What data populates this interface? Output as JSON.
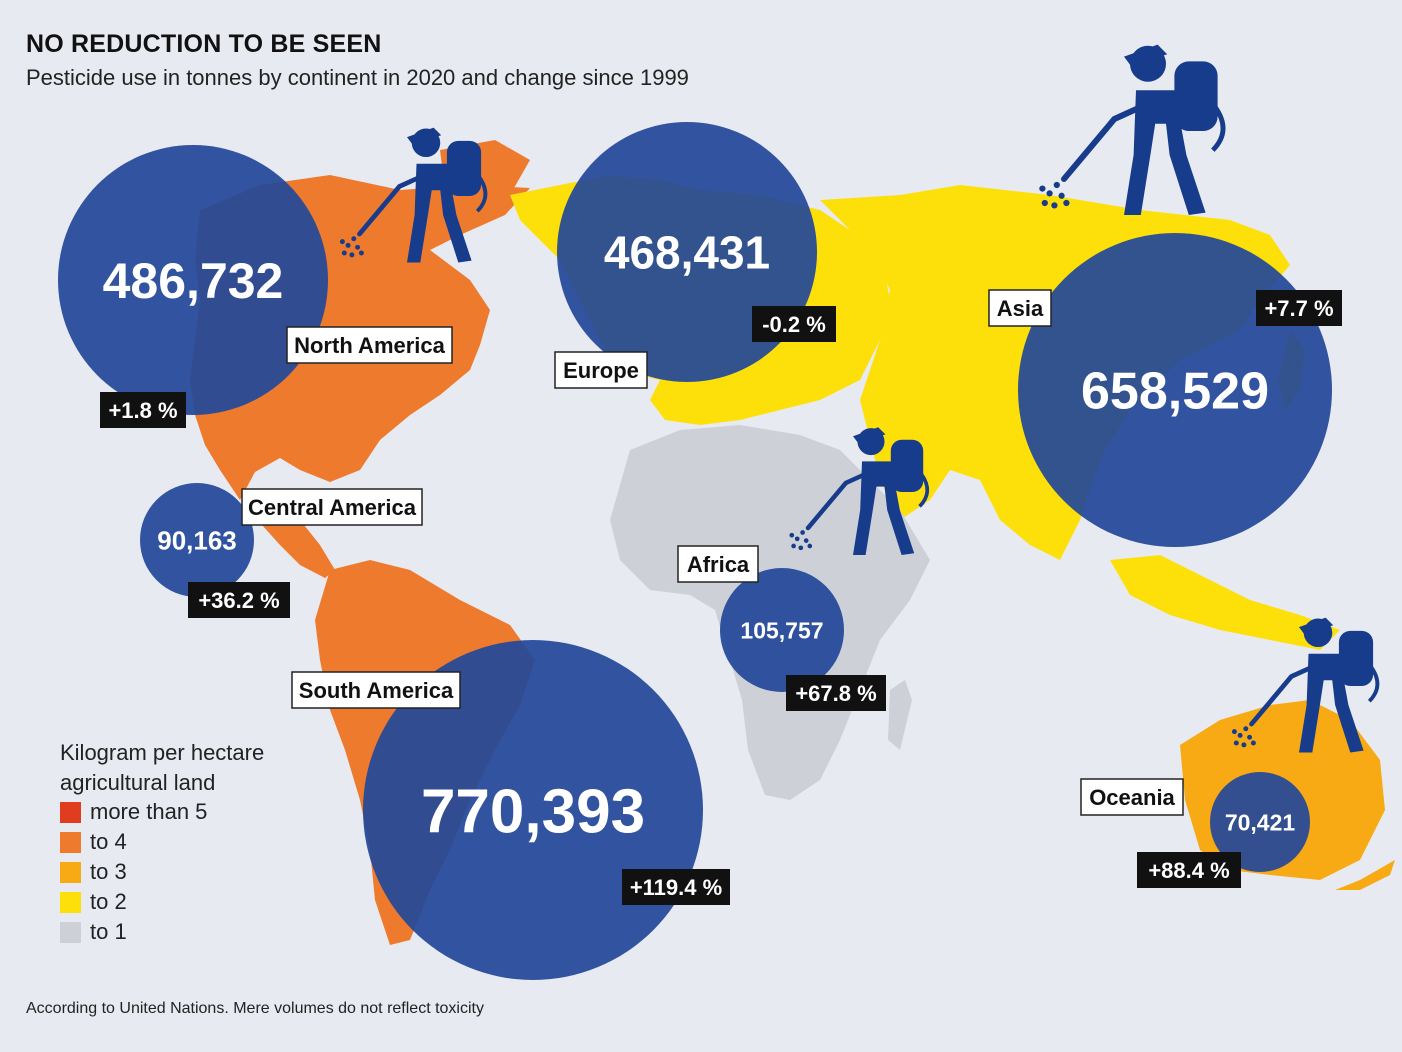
{
  "header": {
    "title": "NO REDUCTION TO BE SEEN",
    "subtitle": "Pesticide use in tonnes by continent in 2020 and change since 1999"
  },
  "footer": {
    "source": "According to United Nations. Mere volumes do not reflect toxicity"
  },
  "legend": {
    "title_line1": "Kilogram per hectare",
    "title_line2": "agricultural land",
    "items": [
      {
        "label": "more than 5",
        "color": "#e03c1e"
      },
      {
        "label": "to 4",
        "color": "#ee7a2e"
      },
      {
        "label": "to 3",
        "color": "#f7aa14"
      },
      {
        "label": "to 2",
        "color": "#fde00a"
      },
      {
        "label": "to 1",
        "color": "#cdd0d6"
      }
    ]
  },
  "colors": {
    "background": "#e8eaf2",
    "bubble": "#24489a",
    "sprayer_icon": "#173c8c",
    "label_box_border": "#222222",
    "change_box": "#111111"
  },
  "regions": [
    {
      "name": "North America",
      "pesticide_use_tonnes": "486,732",
      "change_since_1999": "+1.8 %",
      "color_class": "to 4",
      "sprayer_icon": true
    },
    {
      "name": "Europe",
      "pesticide_use_tonnes": "468,431",
      "change_since_1999": "-0.2 %",
      "color_class": "to 2",
      "sprayer_icon": false
    },
    {
      "name": "Asia",
      "pesticide_use_tonnes": "658,529",
      "change_since_1999": "+7.7 %",
      "color_class": "to 2",
      "sprayer_icon": true
    },
    {
      "name": "Central America",
      "pesticide_use_tonnes": "90,163",
      "change_since_1999": "+36.2 %",
      "color_class": "to 4",
      "sprayer_icon": false
    },
    {
      "name": "Africa",
      "pesticide_use_tonnes": "105,757",
      "change_since_1999": "+67.8 %",
      "color_class": "to 1",
      "sprayer_icon": true
    },
    {
      "name": "South America",
      "pesticide_use_tonnes": "770,393",
      "change_since_1999": "+119.4 %",
      "color_class": "to 4",
      "sprayer_icon": false
    },
    {
      "name": "Oceania",
      "pesticide_use_tonnes": "70,421",
      "change_since_1999": "+88.4 %",
      "color_class": "to 3",
      "sprayer_icon": true
    }
  ]
}
